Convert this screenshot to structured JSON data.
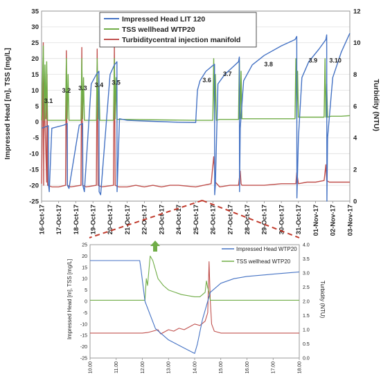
{
  "colors": {
    "head": "#4472C4",
    "tss": "#70AD47",
    "turb": "#C0504D",
    "grid": "#d9d9d9",
    "dashed": "#c0392b",
    "arrow": "#70AD47"
  },
  "chart_data": [
    {
      "type": "line",
      "id": "main",
      "legend": [
        "Impressed Head LIT 120",
        "TSS wellhead WTP20",
        "Turbiditycentral injection manifold"
      ],
      "legend_position": "top-center",
      "ylabel": "Impressed Head  [m],  TSS  [mg/L]",
      "y2label": "Turbidity (NTU)",
      "ylim": [
        -25,
        35
      ],
      "y_ticks": [
        -25,
        -20,
        -15,
        -10,
        -5,
        0,
        5,
        10,
        15,
        20,
        25,
        30,
        35
      ],
      "y2lim": [
        0,
        12
      ],
      "y2_ticks": [
        0,
        2,
        4,
        6,
        8,
        10,
        12
      ],
      "xlim": [
        0,
        18
      ],
      "x_ticks": [
        "16-Oct-17",
        "17-Oct-17",
        "18-Oct-17",
        "19-Oct-17",
        "20-Oct-17",
        "21-Oct-17",
        "22-Oct-17",
        "23-Oct-17",
        "24-Oct-17",
        "25-Oct-17",
        "26-Oct-17",
        "27-Oct-17",
        "28-Oct-17",
        "29-Oct-17",
        "30-Oct-17",
        "31-Oct-17",
        "01-Nov-17",
        "02-Nov-17",
        "03-Nov-17"
      ],
      "grid": "horizontal",
      "stage_labels": [
        {
          "text": "3.1",
          "x": 0.15,
          "y": 6
        },
        {
          "text": "3.2",
          "x": 1.2,
          "y": 9.3
        },
        {
          "text": "3.3",
          "x": 2.15,
          "y": 10
        },
        {
          "text": "3.4",
          "x": 3.1,
          "y": 11
        },
        {
          "text": "3.5",
          "x": 4.1,
          "y": 11.8
        },
        {
          "text": "3.6",
          "x": 9.4,
          "y": 12.5
        },
        {
          "text": "3.7",
          "x": 10.6,
          "y": 14.5
        },
        {
          "text": "3.8",
          "x": 13.0,
          "y": 17.5
        },
        {
          "text": "3.9",
          "x": 15.6,
          "y": 18.8
        },
        {
          "text": "3.10",
          "x": 16.8,
          "y": 18.8
        }
      ],
      "series": [
        {
          "name": "Impressed Head LIT 120",
          "axis": "left",
          "x": [
            0.0,
            0.25,
            0.4,
            0.41,
            0.45,
            0.6,
            1.3,
            1.5,
            1.51,
            1.6,
            2.2,
            2.4,
            2.41,
            2.5,
            2.9,
            3.2,
            3.35,
            3.36,
            3.45,
            4.0,
            4.25,
            4.4,
            4.41,
            4.55,
            5.0,
            6.0,
            7.0,
            8.0,
            9.0,
            9.1,
            9.25,
            9.6,
            10.0,
            10.1,
            10.11,
            10.15,
            10.3,
            10.7,
            11.1,
            11.5,
            11.55,
            11.56,
            11.6,
            11.8,
            12.3,
            13.0,
            14.0,
            14.8,
            14.9,
            14.91,
            15.0,
            15.2,
            15.6,
            16.2,
            16.6,
            16.65,
            16.66,
            16.7,
            17.0,
            17.5,
            18.0
          ],
          "values": [
            -2,
            -1.5,
            -1.2,
            -20,
            -22,
            -2,
            -1,
            -0.5,
            -20,
            -21,
            -1,
            -0.5,
            -20,
            -22,
            12,
            15,
            16,
            -22,
            -23,
            15,
            18,
            19,
            -22,
            1,
            0.5,
            0.3,
            0.1,
            -0.1,
            -0.2,
            10,
            13,
            16,
            17.8,
            18.2,
            -23,
            -20,
            12,
            15,
            17,
            19,
            20.5,
            -22,
            -2,
            13,
            18,
            21,
            24,
            26,
            27,
            -24,
            -5,
            14,
            19,
            23,
            26,
            27.5,
            -25,
            -5,
            14,
            22,
            28
          ]
        },
        {
          "name": "TSS wellhead WTP20",
          "axis": "left",
          "x": [
            0.0,
            0.1,
            0.15,
            0.2,
            0.25,
            0.3,
            0.35,
            0.5,
            1.0,
            1.4,
            1.45,
            1.5,
            1.55,
            1.6,
            1.8,
            2.3,
            2.35,
            2.4,
            2.45,
            2.5,
            2.7,
            3.2,
            3.25,
            3.3,
            3.35,
            3.4,
            3.6,
            4.2,
            4.25,
            4.3,
            4.35,
            4.4,
            4.6,
            5.0,
            9.0,
            10.0,
            10.05,
            10.1,
            10.15,
            10.2,
            10.4,
            11.5,
            11.55,
            11.6,
            11.65,
            11.7,
            11.9,
            14.8,
            14.85,
            14.9,
            14.95,
            15.0,
            15.2,
            16.5,
            16.55,
            16.6,
            16.65,
            16.7,
            16.9,
            17.5,
            18.0
          ],
          "values": [
            0.5,
            24,
            0.5,
            18,
            1,
            19,
            0.5,
            0.5,
            0.5,
            0.5,
            20,
            1,
            15,
            0.5,
            0.5,
            0.5,
            20,
            1,
            14,
            0.5,
            0.5,
            0.5,
            20,
            1,
            14,
            0.5,
            0.5,
            0.5,
            20,
            1,
            14,
            0.8,
            0.8,
            0.8,
            0.5,
            0.5,
            20,
            1,
            15,
            0.5,
            0.8,
            0.8,
            20,
            1,
            16,
            1,
            1,
            1,
            20,
            1,
            16,
            1.5,
            1.5,
            1.5,
            20,
            1.5,
            12,
            1.5,
            1.8,
            1.8,
            2
          ]
        },
        {
          "name": "Turbiditycentral injection manifold",
          "axis": "right",
          "x": [
            0.0,
            0.1,
            0.12,
            0.15,
            0.3,
            0.32,
            0.35,
            0.6,
            1.0,
            1.4,
            1.45,
            1.5,
            1.7,
            2.3,
            2.35,
            2.4,
            2.6,
            3.2,
            3.25,
            3.3,
            3.5,
            4.2,
            4.25,
            4.3,
            4.5,
            5.0,
            5.5,
            6.0,
            6.5,
            7.0,
            7.5,
            8.0,
            9.0,
            9.9,
            10.05,
            10.15,
            10.4,
            11.0,
            11.5,
            11.6,
            11.65,
            11.7,
            12.0,
            13.0,
            14.0,
            14.85,
            14.9,
            15.0,
            15.5,
            16.0,
            16.5,
            16.6,
            16.65,
            16.8,
            17.5,
            18.0
          ],
          "values": [
            1.1,
            10,
            1.0,
            7,
            1.2,
            8,
            1.0,
            0.9,
            0.9,
            1.0,
            9.5,
            1.0,
            0.9,
            1.0,
            9.7,
            1.0,
            0.9,
            1.0,
            9.6,
            1.0,
            0.9,
            1.0,
            9.9,
            1.0,
            0.9,
            0.9,
            1.0,
            0.9,
            1.0,
            0.9,
            1.0,
            1.0,
            0.9,
            1.1,
            2.8,
            1.2,
            0.9,
            1.0,
            1.0,
            1.9,
            1.1,
            1.0,
            1.0,
            1.0,
            1.1,
            1.1,
            1.8,
            1.1,
            1.2,
            1.2,
            1.3,
            2.3,
            1.3,
            1.2,
            1.2,
            1.2
          ]
        }
      ]
    },
    {
      "type": "line",
      "id": "zoom",
      "legend": [
        "Impressed Head WTP20",
        "TSS wellhead WTP20"
      ],
      "legend_position": "top-right",
      "ylabel": "Impressed Head  [m],  TSS  [mg/L]",
      "y2label": "Turbidity (NTU)",
      "ylim": [
        -25,
        25
      ],
      "y_ticks": [
        -25,
        -20,
        -15,
        -10,
        -5,
        0,
        5,
        10,
        15,
        20,
        25
      ],
      "y2lim": [
        0,
        4
      ],
      "y2_ticks": [
        "0.0",
        "0.5",
        "1.0",
        "1.5",
        "2.0",
        "2.5",
        "3.0",
        "3.5",
        "4.0"
      ],
      "xlim": [
        10,
        18
      ],
      "x_ticks": [
        "10.00",
        "11.00",
        "12.00",
        "13.00",
        "14.00",
        "15.00",
        "16.00",
        "17.00",
        "18.00"
      ],
      "grid": "none",
      "series": [
        {
          "name": "Impressed Head WTP20",
          "axis": "left",
          "x": [
            10.0,
            11.0,
            11.9,
            11.95,
            12.1,
            12.5,
            13.0,
            13.5,
            14.0,
            14.1,
            14.3,
            14.6,
            15.0,
            15.5,
            16.0,
            17.0,
            18.0
          ],
          "values": [
            18,
            18,
            18,
            14,
            0,
            -12,
            -17,
            -20,
            -23,
            -19,
            -8,
            4,
            8,
            10,
            11,
            12,
            13
          ]
        },
        {
          "name": "TSS wellhead WTP20",
          "axis": "left",
          "x": [
            10.0,
            11.0,
            12.0,
            12.1,
            12.15,
            12.2,
            12.3,
            12.4,
            12.6,
            12.8,
            13.0,
            13.5,
            14.0,
            14.2,
            14.4,
            14.45,
            14.5,
            14.55,
            14.6,
            15.0,
            16.0,
            17.0,
            18.0
          ],
          "values": [
            0.5,
            0.5,
            0.5,
            0.5,
            10,
            7,
            20,
            18,
            10,
            7,
            5,
            3,
            2,
            2,
            4,
            9,
            6,
            4,
            0.5,
            0.5,
            0.5,
            0.5,
            0.5
          ]
        },
        {
          "name": "Turbidity",
          "axis": "right",
          "x": [
            10.0,
            11.0,
            12.0,
            12.2,
            12.4,
            12.6,
            12.7,
            12.8,
            13.0,
            13.2,
            13.4,
            13.6,
            13.8,
            14.0,
            14.2,
            14.4,
            14.5,
            14.55,
            14.6,
            14.65,
            14.75,
            15.0,
            16.0,
            17.0,
            18.0
          ],
          "values": [
            0.88,
            0.88,
            0.88,
            0.9,
            0.95,
            1.0,
            0.85,
            0.9,
            1.0,
            0.95,
            1.05,
            1.0,
            1.1,
            1.2,
            1.15,
            1.3,
            1.6,
            3.4,
            2.0,
            1.2,
            0.95,
            0.88,
            0.88,
            0.88,
            0.88
          ]
        }
      ]
    }
  ]
}
